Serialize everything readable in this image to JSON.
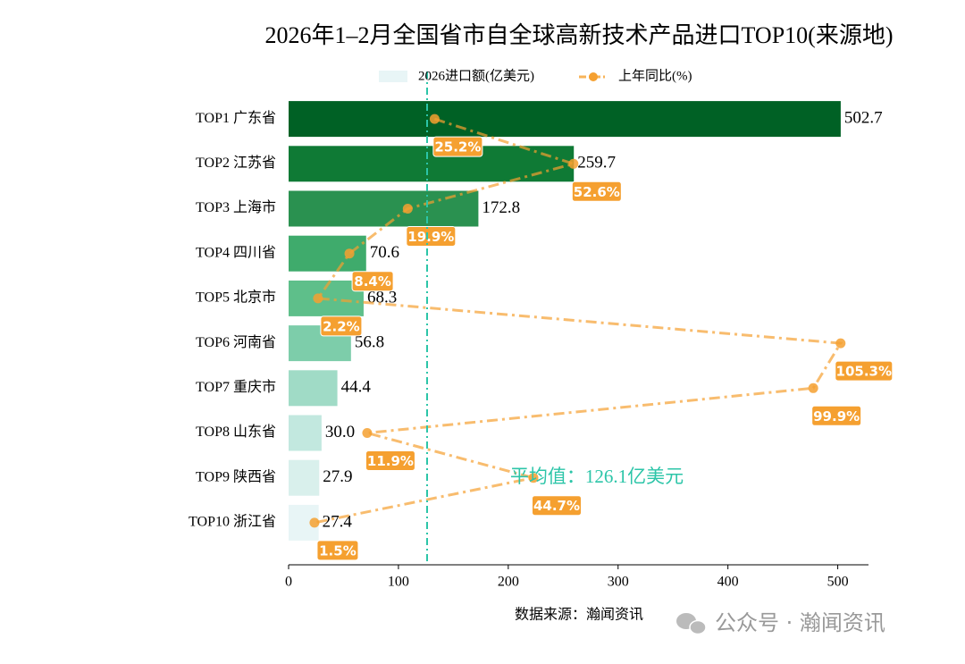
{
  "chart_data": {
    "type": "bar",
    "orientation": "horizontal",
    "title": "2026年1–2月全国省市自全球高新技术产品进口TOP10(来源地)",
    "categories": [
      "TOP1 广东省",
      "TOP2 江苏省",
      "TOP3 上海市",
      "TOP4 四川省",
      "TOP5 北京市",
      "TOP6 河南省",
      "TOP7 重庆市",
      "TOP8 山东省",
      "TOP9 陕西省",
      "TOP10 浙江省"
    ],
    "series": [
      {
        "name": "2026进口额(亿美元)",
        "type": "bar",
        "colors": [
          "#006125",
          "#0f7a35",
          "#2a9150",
          "#3fab6c",
          "#5ebf8a",
          "#7dcdaa",
          "#a0dbc6",
          "#c2e8df",
          "#d9f0ec",
          "#e8f5f6"
        ],
        "values": [
          502.7,
          259.7,
          172.8,
          70.6,
          68.3,
          56.8,
          44.4,
          30.0,
          27.9,
          27.4
        ],
        "value_labels": [
          "502.7",
          "259.7",
          "172.8",
          "70.6",
          "68.3",
          "56.8",
          "44.4",
          "30.0",
          "27.9",
          "27.4"
        ]
      },
      {
        "name": "上年同比(%)",
        "type": "line",
        "axis": "x2",
        "color": "#f5a030",
        "values": [
          25.2,
          52.6,
          19.9,
          8.4,
          2.2,
          105.3,
          99.9,
          11.9,
          44.7,
          1.5
        ],
        "value_labels": [
          "25.2%",
          "52.6%",
          "19.9%",
          "8.4%",
          "2.2%",
          "105.3%",
          "99.9%",
          "11.9%",
          "44.7%",
          "1.5%"
        ]
      }
    ],
    "xlim": [
      0,
      528
    ],
    "xticks": [
      0,
      100,
      200,
      300,
      400,
      500
    ],
    "x2lim": [
      -3.6,
      110.8
    ],
    "average": {
      "value": 126.1,
      "label": "平均值：126.1亿美元",
      "color": "#2cc5a8"
    },
    "legend": "top",
    "source": "数据来源：瀚闻资讯",
    "watermark": "公众号 · 瀚闻资讯"
  }
}
